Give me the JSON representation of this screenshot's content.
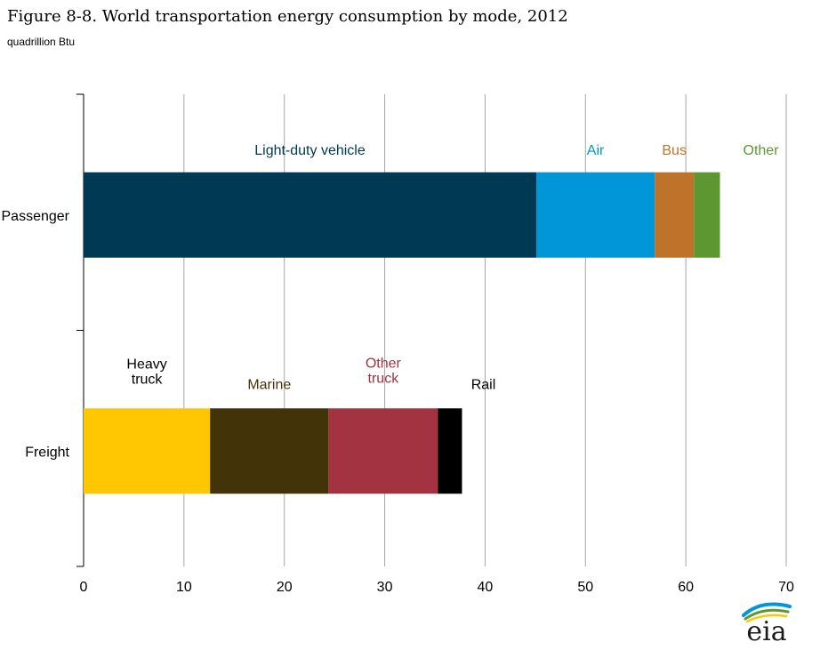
{
  "title": "Figure 8-8. World transportation energy consumption by mode, 2012",
  "subtitle": "quadrillion Btu",
  "logo_text": "eia",
  "chart_data": {
    "type": "bar",
    "orientation": "horizontal",
    "stacked": true,
    "xlim": [
      0,
      70
    ],
    "x_ticks": [
      0,
      10,
      20,
      30,
      40,
      50,
      60,
      70
    ],
    "grid": true,
    "categories": [
      "Passenger",
      "Freight"
    ],
    "segments": [
      [
        {
          "name": "Light-duty vehicle",
          "value": 45.1,
          "color": "#003953"
        },
        {
          "name": "Air",
          "value": 11.8,
          "color": "#0096d7"
        },
        {
          "name": "Bus",
          "value": 3.9,
          "color": "#bd732a"
        },
        {
          "name": "Other",
          "value": 2.6,
          "color": "#5d9732"
        }
      ],
      [
        {
          "name": "Heavy truck",
          "value": 12.6,
          "color": "#ffc702"
        },
        {
          "name": "Marine",
          "value": 11.8,
          "color": "#423308"
        },
        {
          "name": "Other truck",
          "value": 10.9,
          "color": "#a33340"
        },
        {
          "name": "Rail",
          "value": 2.4,
          "color": "#000000"
        }
      ]
    ],
    "labels": [
      [
        {
          "lines": [
            "Light-duty vehicle"
          ],
          "color": "#003953"
        },
        {
          "lines": [
            "Air"
          ],
          "color": "#0096d7"
        },
        {
          "lines": [
            "Bus"
          ],
          "color": "#bd732a"
        },
        {
          "lines": [
            "Other"
          ],
          "color": "#5d9732"
        }
      ],
      [
        {
          "lines": [
            "Heavy",
            "truck"
          ],
          "color": "#000000"
        },
        {
          "lines": [
            "Marine"
          ],
          "color": "#423308"
        },
        {
          "lines": [
            "Other",
            "truck"
          ],
          "color": "#a33340"
        },
        {
          "lines": [
            "Rail"
          ],
          "color": "#000000"
        }
      ]
    ]
  }
}
